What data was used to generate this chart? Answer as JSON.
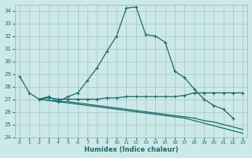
{
  "xlabel": "Humidex (Indice chaleur)",
  "background_color": "#cde8e8",
  "grid_color": "#b0d4d4",
  "line_color": "#1a6b6b",
  "xlim": [
    -0.5,
    23.5
  ],
  "ylim": [
    24,
    34.5
  ],
  "yticks": [
    24,
    25,
    26,
    27,
    28,
    29,
    30,
    31,
    32,
    33,
    34
  ],
  "xticks": [
    0,
    1,
    2,
    3,
    4,
    5,
    6,
    7,
    8,
    9,
    10,
    11,
    12,
    13,
    14,
    15,
    16,
    17,
    18,
    19,
    20,
    21,
    22,
    23
  ],
  "line1_x": [
    0,
    1,
    2,
    3,
    4,
    5,
    6,
    7,
    8,
    9,
    10,
    11,
    12,
    13,
    14,
    15,
    16,
    17,
    18,
    19,
    20,
    21,
    22
  ],
  "line1_y": [
    28.8,
    27.5,
    27.0,
    27.2,
    26.8,
    27.2,
    27.5,
    28.5,
    29.5,
    30.8,
    32.0,
    34.2,
    34.3,
    32.1,
    32.0,
    31.5,
    29.2,
    28.7,
    27.8,
    27.0,
    26.5,
    26.2,
    25.5
  ],
  "line2_x": [
    2,
    3,
    4,
    5,
    6,
    7,
    8,
    9,
    10,
    11,
    12,
    13,
    14,
    15,
    16,
    17,
    18,
    19,
    20,
    21,
    22,
    23
  ],
  "line2_y": [
    27.0,
    27.1,
    27.0,
    27.0,
    27.0,
    27.0,
    27.0,
    27.1,
    27.1,
    27.2,
    27.2,
    27.2,
    27.2,
    27.2,
    27.2,
    27.3,
    27.5,
    27.5,
    27.5,
    27.5,
    27.5,
    27.5
  ],
  "line3_x": [
    2,
    3,
    4,
    5,
    6,
    7,
    8,
    9,
    10,
    11,
    12,
    13,
    14,
    15,
    16,
    17,
    18,
    19,
    20,
    21,
    22,
    23
  ],
  "line3_y": [
    27.0,
    26.9,
    26.8,
    26.8,
    26.7,
    26.6,
    26.5,
    26.4,
    26.3,
    26.2,
    26.1,
    26.0,
    25.9,
    25.8,
    25.7,
    25.6,
    25.5,
    25.3,
    25.2,
    25.0,
    24.8,
    24.6
  ],
  "line4_x": [
    2,
    3,
    4,
    5,
    6,
    7,
    8,
    9,
    10,
    11,
    12,
    13,
    14,
    15,
    16,
    17,
    18,
    19,
    20,
    21,
    22,
    23
  ],
  "line4_y": [
    27.0,
    26.9,
    26.8,
    26.7,
    26.6,
    26.5,
    26.4,
    26.3,
    26.2,
    26.1,
    26.0,
    25.9,
    25.8,
    25.7,
    25.6,
    25.5,
    25.3,
    25.1,
    24.9,
    24.7,
    24.5,
    24.3
  ]
}
